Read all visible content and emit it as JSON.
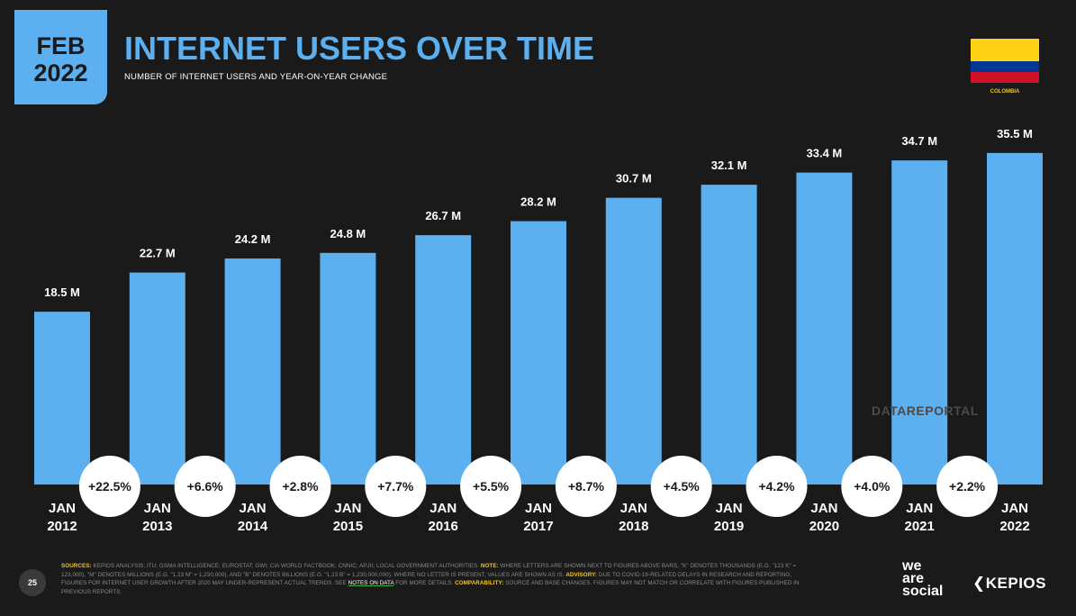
{
  "header": {
    "month": "FEB",
    "year": "2022",
    "title": "INTERNET USERS OVER TIME",
    "subtitle": "NUMBER OF INTERNET USERS AND YEAR-ON-YEAR CHANGE",
    "country_label": "COLOMBIA",
    "flag_colors": [
      "#fcd116",
      "#003893",
      "#ce1126"
    ]
  },
  "colors": {
    "accent": "#5cb0ef",
    "background": "#1a1a1a",
    "highlight": "#f5c518",
    "badge_bg": "#ffffff"
  },
  "chart_data": {
    "type": "bar",
    "title": "INTERNET USERS OVER TIME",
    "xlabel": "",
    "ylabel": "",
    "ylim": [
      0,
      37
    ],
    "categories": [
      [
        "JAN",
        "2012"
      ],
      [
        "JAN",
        "2013"
      ],
      [
        "JAN",
        "2014"
      ],
      [
        "JAN",
        "2015"
      ],
      [
        "JAN",
        "2016"
      ],
      [
        "JAN",
        "2017"
      ],
      [
        "JAN",
        "2018"
      ],
      [
        "JAN",
        "2019"
      ],
      [
        "JAN",
        "2020"
      ],
      [
        "JAN",
        "2021"
      ],
      [
        "JAN",
        "2022"
      ]
    ],
    "values": [
      18.5,
      22.7,
      24.2,
      24.8,
      26.7,
      28.2,
      30.7,
      32.1,
      33.4,
      34.7,
      35.5
    ],
    "value_labels": [
      "18.5 M",
      "22.7 M",
      "24.2 M",
      "24.8 M",
      "26.7 M",
      "28.2 M",
      "30.7 M",
      "32.1 M",
      "33.4 M",
      "34.7 M",
      "35.5 M"
    ],
    "changes": [
      "+22.5%",
      "+6.6%",
      "+2.8%",
      "+7.7%",
      "+5.5%",
      "+8.7%",
      "+4.5%",
      "+4.2%",
      "+4.0%",
      "+2.2%"
    ]
  },
  "watermark": "DATAREPORTAL",
  "footer": {
    "page_number": "25",
    "sources_label": "SOURCES:",
    "sources_text": "KEPIOS ANALYSIS; ITU; GSMA INTELLIGENCE; EUROSTAT; GWI; CIA WORLD FACTBOOK; CNNIC; APJII; LOCAL GOVERNMENT AUTHORITIES.",
    "note_label": "NOTE:",
    "note_text": "WHERE LETTERS ARE SHOWN NEXT TO FIGURES ABOVE BARS, \"K\" DENOTES THOUSANDS (E.G. \"123 K\" = 123,000), \"M\" DENOTES MILLIONS (E.G. \"1.23 M\" = 1,230,000), AND \"B\" DENOTES BILLIONS (E.G. \"1.23 B\" = 1,230,000,000). WHERE NO LETTER IS PRESENT, VALUES ARE SHOWN AS IS.",
    "advisory_label": "ADVISORY:",
    "advisory_text": "DUE TO COVID-19-RELATED DELAYS IN RESEARCH AND REPORTING, FIGURES FOR INTERNET USER GROWTH AFTER 2020 MAY UNDER-REPRESENT ACTUAL TRENDS. SEE",
    "notes_link": "NOTES ON DATA",
    "advisory_tail": "FOR MORE DETAILS.",
    "comparability_label": "COMPARABILITY:",
    "comparability_text": "SOURCE AND BASE CHANGES. FIGURES MAY NOT MATCH OR CORRELATE WITH FIGURES PUBLISHED IN PREVIOUS REPORTS.",
    "brand_we": "we",
    "brand_are": "are",
    "brand_social": "social",
    "brand_kepios": "KEPIOS"
  }
}
